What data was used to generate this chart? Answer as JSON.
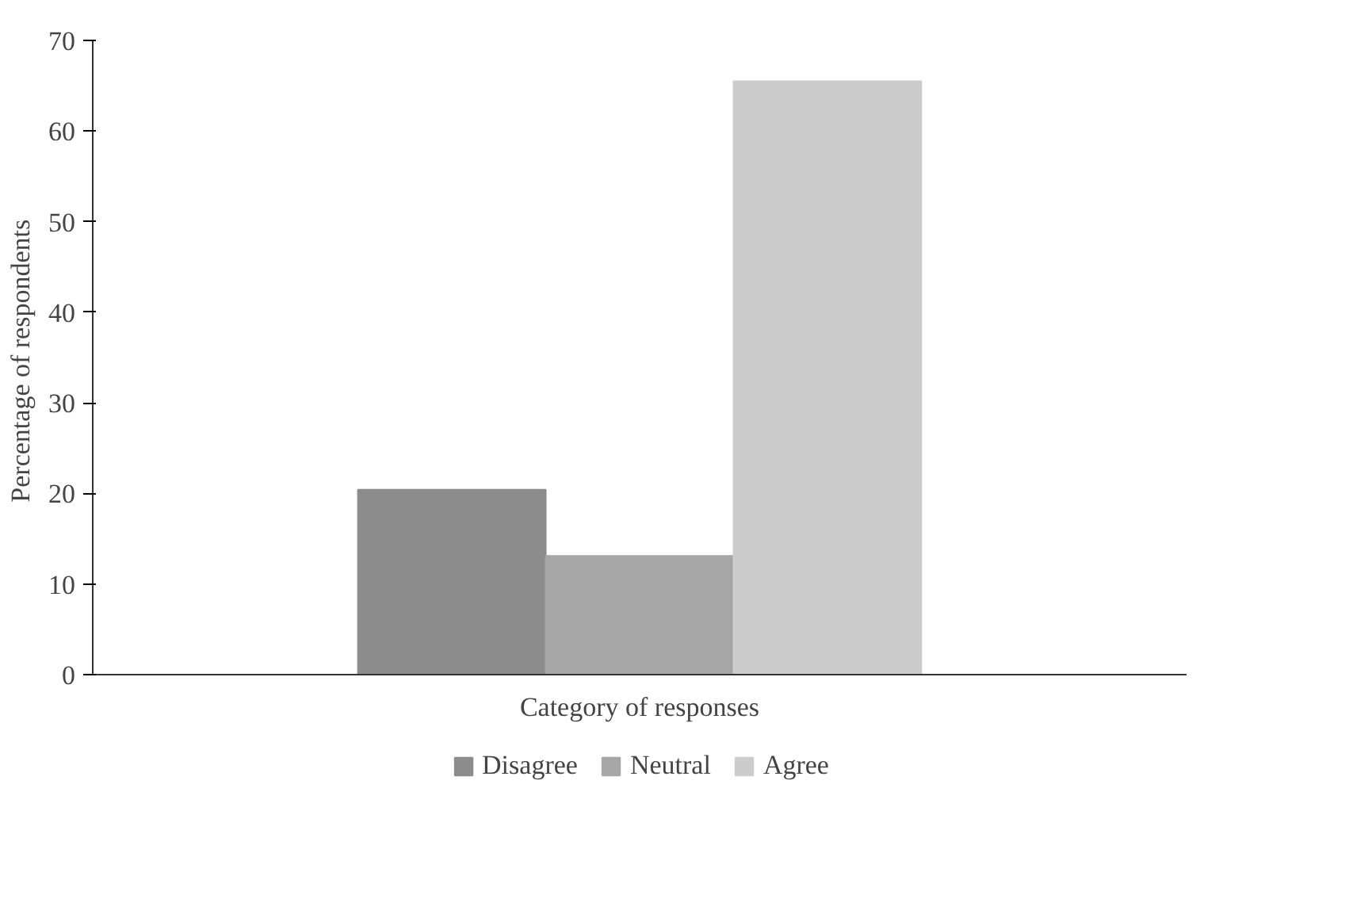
{
  "chart_data": {
    "type": "bar",
    "xlabel": "Category of responses",
    "ylabel": "Percentage  of respondents",
    "categories": [
      null
    ],
    "series": [
      {
        "name": "Disagree",
        "color": "#8c8c8c",
        "values": [
          20.4
        ]
      },
      {
        "name": "Neutral",
        "color": "#a6a6a6",
        "values": [
          13.1
        ]
      },
      {
        "name": "Agree",
        "color": "#cccccc",
        "values": [
          65.5
        ]
      }
    ],
    "ylim": [
      0,
      70
    ],
    "yticks": [
      0,
      10,
      20,
      30,
      40,
      50,
      60,
      70
    ],
    "grid": false,
    "legend": "bottom",
    "tick_labels": "y"
  }
}
